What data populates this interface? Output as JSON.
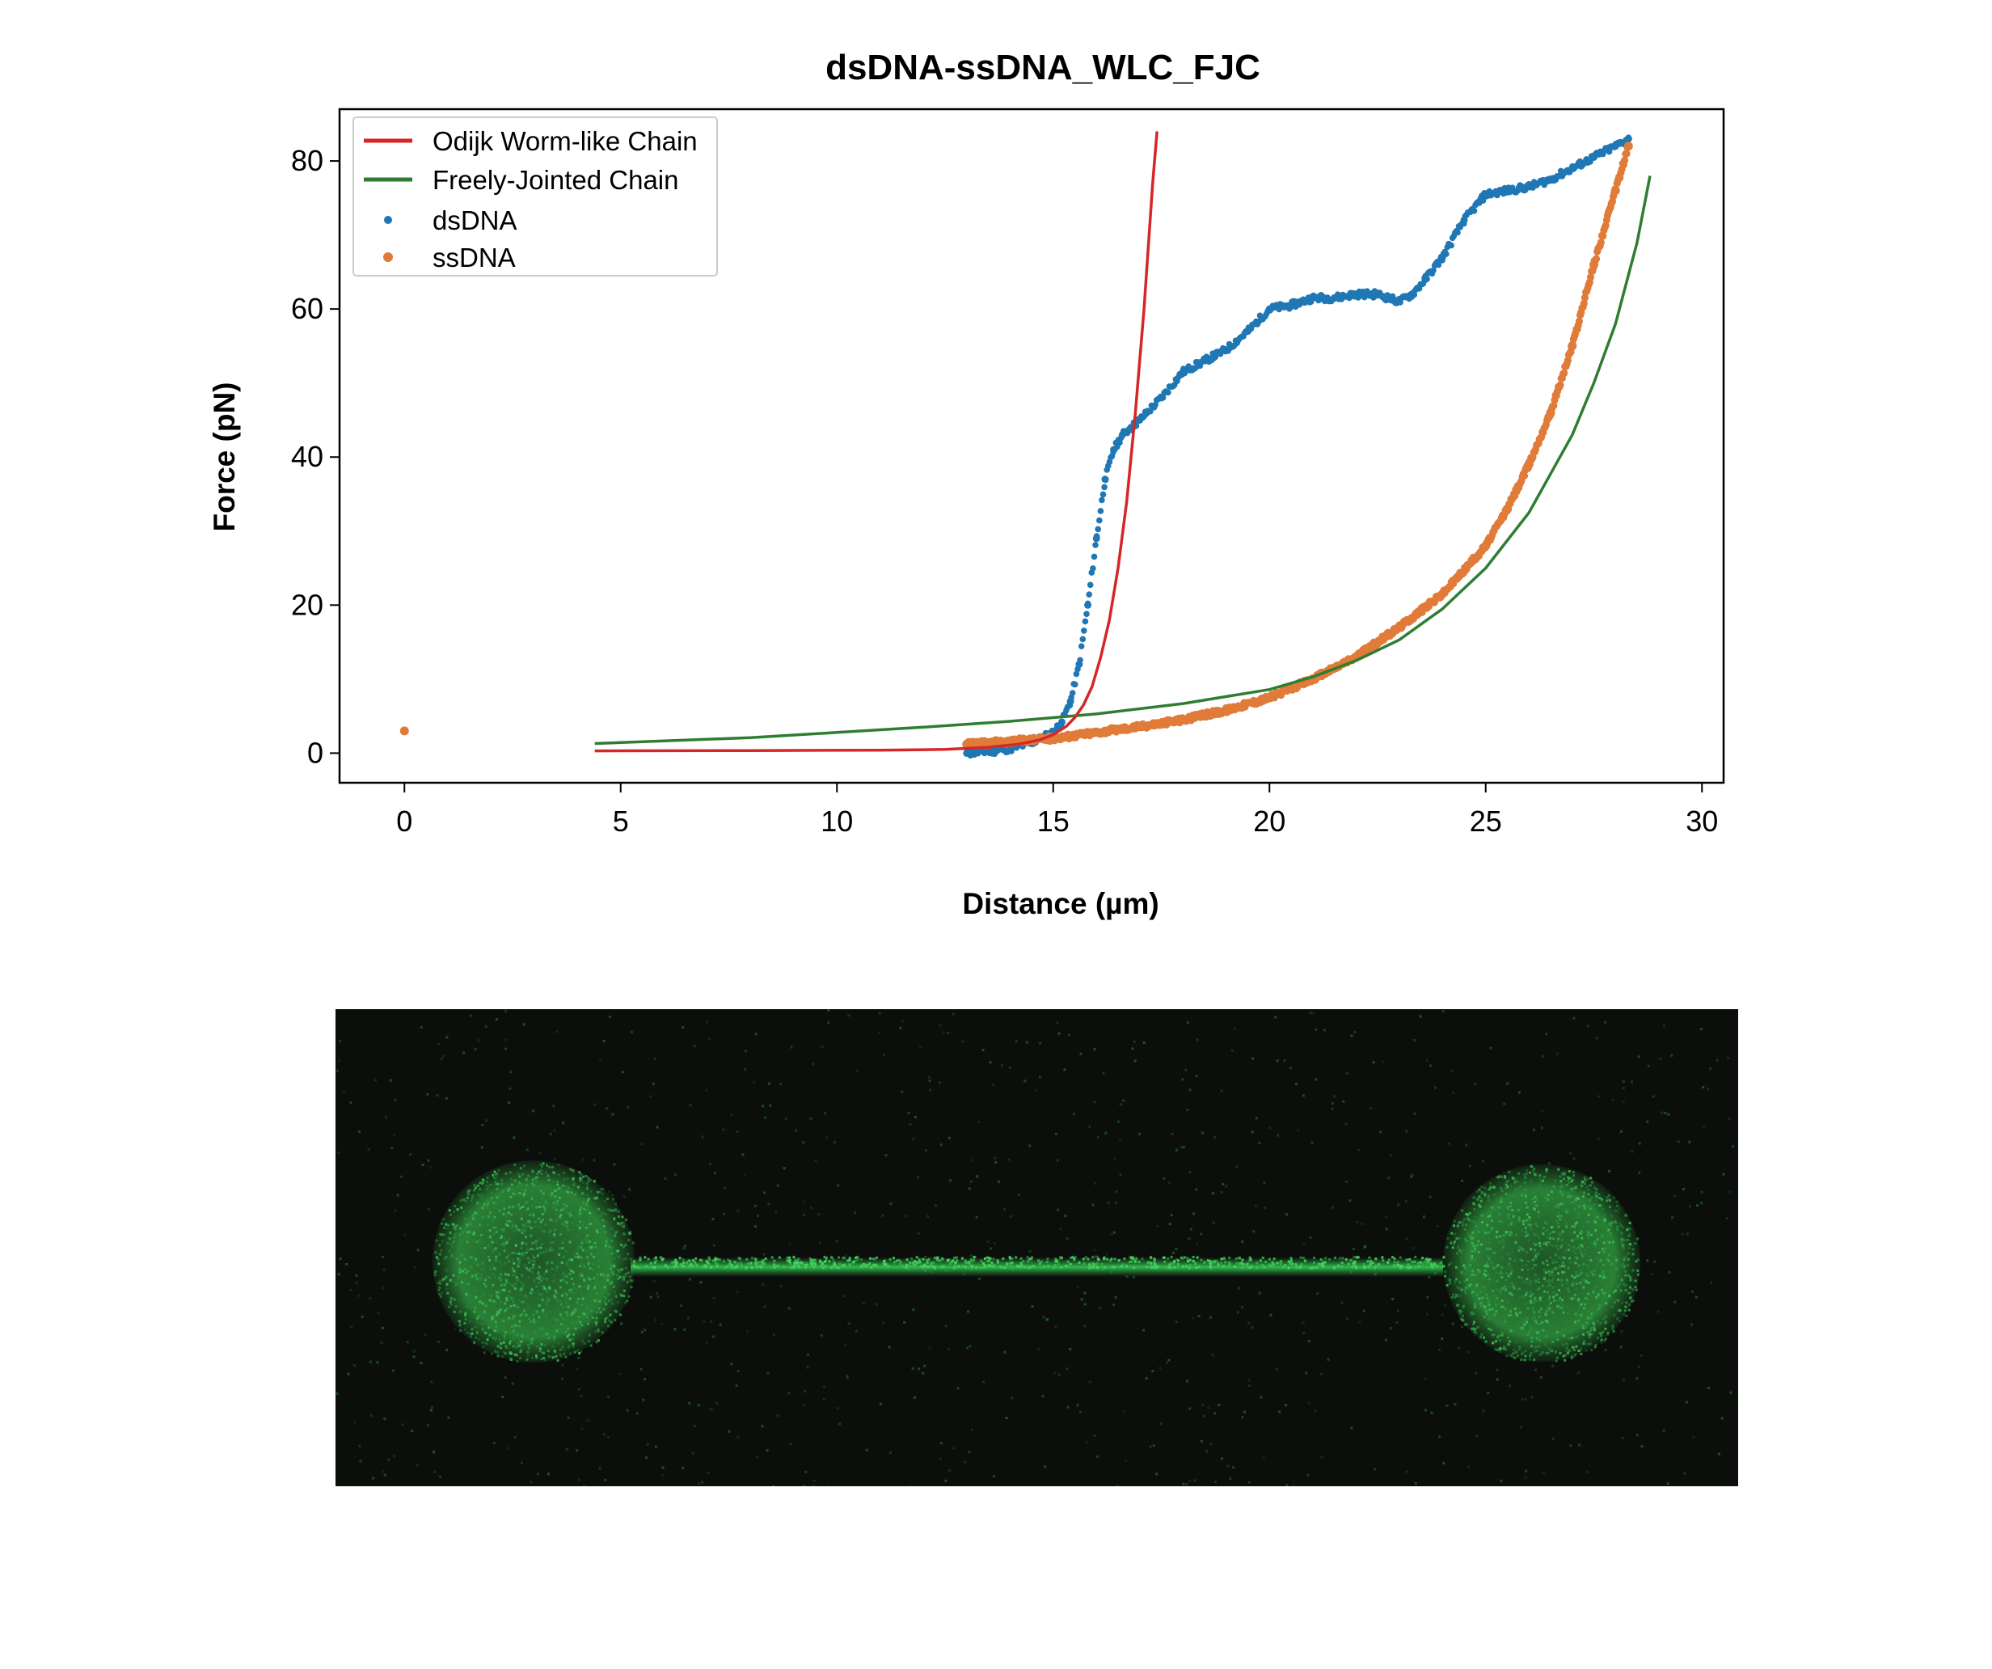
{
  "colors": {
    "wlc": "#d62728",
    "fjc": "#2e7d32",
    "dsdna": "#1f77b4",
    "ssdna": "#e07b39",
    "micro_background": "#0c0e0c",
    "micro_fluorescence": "#2fb34a"
  },
  "chart_data": {
    "type": "scatter",
    "title": "dsDNA-ssDNA_WLC_FJC",
    "xlabel": "Distance (µm)",
    "ylabel": "Force (pN)",
    "xlim": [
      -1.5,
      30.5
    ],
    "ylim": [
      -4,
      87
    ],
    "xticks": [
      0,
      5,
      10,
      15,
      20,
      25,
      30
    ],
    "yticks": [
      0,
      20,
      40,
      60,
      80
    ],
    "grid": false,
    "legend_position": "top-left",
    "legend": [
      "Odijk Worm-like Chain",
      "Freely-Jointed Chain",
      "dsDNA",
      "ssDNA"
    ],
    "series": [
      {
        "name": "Odijk Worm-like Chain",
        "kind": "line",
        "x": [
          4.4,
          8,
          11,
          12.5,
          13.5,
          14.2,
          14.7,
          15.0,
          15.3,
          15.5,
          15.7,
          15.9,
          16.1,
          16.3,
          16.5,
          16.7,
          16.9,
          17.1,
          17.3,
          17.4
        ],
        "y": [
          0.3,
          0.35,
          0.4,
          0.5,
          0.8,
          1.2,
          1.8,
          2.5,
          3.6,
          4.8,
          6.5,
          9,
          13,
          18,
          25,
          34,
          46,
          60,
          77,
          84
        ]
      },
      {
        "name": "Freely-Jointed Chain",
        "kind": "line",
        "x": [
          4.4,
          8,
          10,
          12,
          14,
          16,
          18,
          20,
          21,
          22,
          23,
          24,
          25,
          26,
          27,
          27.5,
          28,
          28.5,
          28.8
        ],
        "y": [
          1.3,
          2.1,
          2.8,
          3.5,
          4.3,
          5.3,
          6.7,
          8.6,
          10.3,
          12.5,
          15.3,
          19.5,
          25,
          32.5,
          43,
          50,
          58,
          69,
          78
        ]
      },
      {
        "name": "dsDNA",
        "kind": "points",
        "x": [
          13,
          13.5,
          14,
          14.5,
          15,
          15.2,
          15.4,
          15.6,
          15.8,
          16.0,
          16.2,
          16.4,
          16.6,
          16.8,
          17.0,
          17.5,
          18,
          18.5,
          19,
          19.5,
          20,
          20.5,
          21,
          21.5,
          22,
          22.5,
          23,
          23.3,
          23.6,
          24,
          24.5,
          25,
          25.5,
          26,
          26.5,
          27,
          27.5,
          28,
          28.3
        ],
        "y": [
          0,
          0.2,
          0.6,
          1.4,
          2.8,
          4.2,
          7,
          12,
          20,
          29,
          37,
          41,
          43,
          44,
          45,
          48,
          51.5,
          53,
          54.5,
          57,
          60,
          60.5,
          61.5,
          61.5,
          62,
          62,
          61,
          62,
          64,
          67,
          72,
          75.5,
          76,
          76.5,
          77.5,
          79,
          80.5,
          82,
          83
        ]
      },
      {
        "name": "ssDNA",
        "kind": "points",
        "x": [
          0,
          13,
          14,
          15,
          16,
          17,
          18,
          19,
          20,
          21,
          22,
          23,
          24,
          25,
          25.5,
          26,
          26.5,
          27,
          27.5,
          28,
          28.3
        ],
        "y": [
          3,
          1.2,
          1.6,
          2,
          2.8,
          3.6,
          4.5,
          5.8,
          7.5,
          10,
          13,
          17,
          21.5,
          28,
          33,
          39,
          46,
          55,
          66,
          76,
          82
        ]
      }
    ]
  },
  "micrograph": {
    "description_icon": "dna-tether-fluorescence-image"
  }
}
